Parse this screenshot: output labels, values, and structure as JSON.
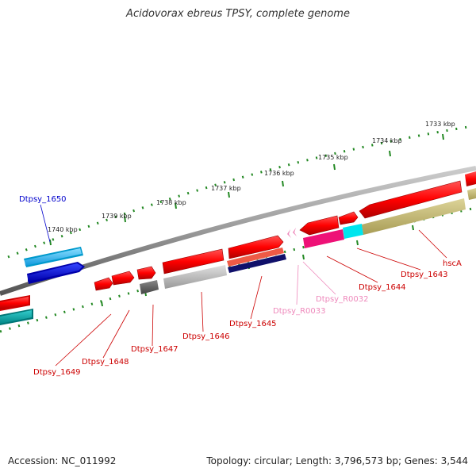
{
  "title": "Acidovorax ebreus TPSY, complete genome",
  "footer": {
    "accession": "Accession: NC_011992",
    "topology": "Topology: circular; Length: 3,796,573 bp; Genes: 3,544"
  },
  "ticks": [
    {
      "label": "1740 kbp"
    },
    {
      "label": "1739 kbp"
    },
    {
      "label": "1738 kbp"
    },
    {
      "label": "1737 kbp"
    },
    {
      "label": "1736 kbp"
    },
    {
      "label": "1735 kbp"
    },
    {
      "label": "1734 kbp"
    },
    {
      "label": "1733 kbp"
    }
  ],
  "genes": [
    {
      "label": "Dtpsy_1650",
      "color": "#0000cc"
    },
    {
      "label": "Dtpsy_1649",
      "color": "#cc0000"
    },
    {
      "label": "Dtpsy_1648",
      "color": "#cc0000"
    },
    {
      "label": "Dtpsy_1647",
      "color": "#cc0000"
    },
    {
      "label": "Dtpsy_1646",
      "color": "#cc0000"
    },
    {
      "label": "Dtpsy_1645",
      "color": "#cc0000"
    },
    {
      "label": "Dtpsy_R0033",
      "color": "#ee88bb"
    },
    {
      "label": "Dtpsy_R0032",
      "color": "#ee88bb"
    },
    {
      "label": "Dtpsy_1644",
      "color": "#cc0000"
    },
    {
      "label": "Dtpsy_1643",
      "color": "#cc0000"
    },
    {
      "label": "hscA",
      "color": "#cc0000"
    }
  ]
}
